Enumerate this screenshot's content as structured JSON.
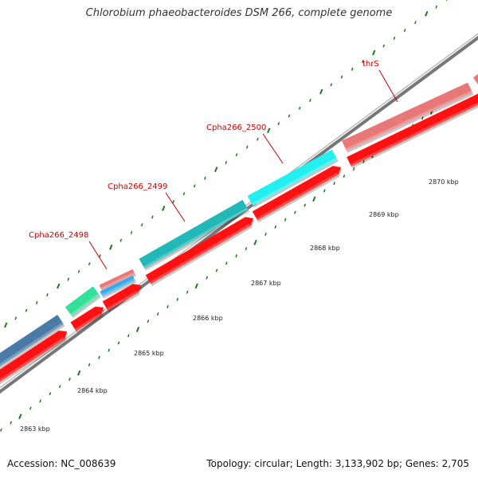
{
  "title": "Chlorobium phaeobacteroides DSM 266, complete genome",
  "footer": {
    "accession": "Accession: NC_008639",
    "summary": "Topology: circular; Length: 3,133,902 bp; Genes: 2,705"
  },
  "genes": [
    {
      "name": "Cpha266_2498",
      "color": "#e87878"
    },
    {
      "name": "Cpha266_2499",
      "color": "#22b8b8"
    },
    {
      "name": "Cpha266_2500",
      "color": "#22f0f0"
    },
    {
      "name": "thrS",
      "color": "#e87878"
    }
  ],
  "unlabeled_gene_colors": [
    "#4a7aa6",
    "#33e09a",
    "#33aaee"
  ],
  "reverse_strand_color": "#ff1111",
  "backbone_color": "#777777",
  "tick_color": "#1a7a1a",
  "label_color": "#cc0000",
  "scale_labels": [
    "2863 kbp",
    "2864 kbp",
    "2865 kbp",
    "2866 kbp",
    "2867 kbp",
    "2868 kbp",
    "2869 kbp",
    "2870 kbp"
  ]
}
